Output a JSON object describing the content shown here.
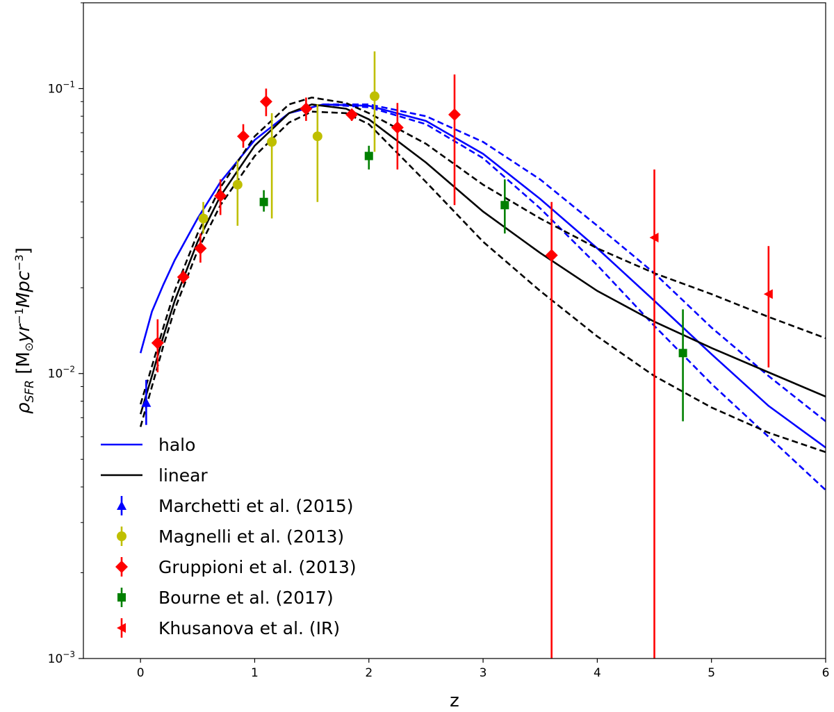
{
  "chart_data": {
    "type": "scatter",
    "title": "",
    "xlabel": "z",
    "ylabel": "ρSFR [M⊙yr⁻¹Mpc⁻³]",
    "xlim": [
      -0.5,
      6
    ],
    "ylim": [
      0.001,
      0.2
    ],
    "yscale": "log",
    "grid": false,
    "legend_position": "lower-left",
    "xticks": [
      0,
      1,
      2,
      3,
      4,
      5,
      6
    ],
    "xtick_labels": [
      "0",
      "1",
      "2",
      "3",
      "4",
      "5",
      "6"
    ],
    "yticks": [
      0.001,
      0.01,
      0.1
    ],
    "ytick_labels": [
      "10⁻³",
      "10⁻²",
      "10⁻¹"
    ],
    "lines": [
      {
        "name": "halo",
        "color": "#0000ff",
        "dash": "solid",
        "in_legend": true,
        "x": [
          0,
          0.1,
          0.2,
          0.3,
          0.5,
          0.7,
          1.0,
          1.3,
          1.6,
          2.0,
          2.5,
          3.0,
          3.5,
          4.0,
          4.5,
          5.0,
          5.5,
          6.0
        ],
        "y": [
          0.0118,
          0.0165,
          0.0205,
          0.025,
          0.035,
          0.047,
          0.066,
          0.082,
          0.088,
          0.087,
          0.077,
          0.059,
          0.041,
          0.0275,
          0.018,
          0.0117,
          0.0077,
          0.0055
        ]
      },
      {
        "name": "halo upper",
        "color": "#0000ff",
        "dash": "dashed",
        "in_legend": false,
        "x": [
          1.6,
          2.0,
          2.5,
          3.0,
          3.5,
          4.0,
          4.5,
          5.0,
          5.5,
          6.0
        ],
        "y": [
          0.088,
          0.088,
          0.08,
          0.065,
          0.048,
          0.033,
          0.0225,
          0.0145,
          0.0098,
          0.0068
        ]
      },
      {
        "name": "halo lower",
        "color": "#0000ff",
        "dash": "dashed",
        "in_legend": false,
        "x": [
          1.6,
          2.0,
          2.5,
          3.0,
          3.5,
          4.0,
          4.5,
          5.0,
          5.5,
          6.0
        ],
        "y": [
          0.088,
          0.086,
          0.075,
          0.057,
          0.038,
          0.024,
          0.0147,
          0.0092,
          0.006,
          0.0039
        ]
      },
      {
        "name": "linear",
        "color": "#000000",
        "dash": "solid",
        "in_legend": true,
        "x": [
          0,
          0.1,
          0.2,
          0.3,
          0.5,
          0.7,
          1.0,
          1.3,
          1.5,
          1.8,
          2.0,
          2.5,
          3.0,
          3.5,
          4.0,
          4.5,
          5.0,
          5.5,
          6.0
        ],
        "y": [
          0.0072,
          0.0098,
          0.0135,
          0.018,
          0.029,
          0.042,
          0.063,
          0.082,
          0.088,
          0.085,
          0.078,
          0.055,
          0.037,
          0.0265,
          0.0195,
          0.0152,
          0.0123,
          0.0101,
          0.0083
        ]
      },
      {
        "name": "linear upper",
        "color": "#000000",
        "dash": "dashed",
        "in_legend": false,
        "x": [
          0,
          0.1,
          0.2,
          0.3,
          0.5,
          0.7,
          1.0,
          1.3,
          1.5,
          1.8,
          2.0,
          2.5,
          3.0,
          3.5,
          4.0,
          4.5,
          5.0,
          5.5,
          6.0
        ],
        "y": [
          0.0078,
          0.0106,
          0.0145,
          0.0195,
          0.031,
          0.045,
          0.068,
          0.088,
          0.093,
          0.089,
          0.082,
          0.064,
          0.046,
          0.035,
          0.0275,
          0.0225,
          0.019,
          0.0158,
          0.0133
        ]
      },
      {
        "name": "linear lower",
        "color": "#000000",
        "dash": "dashed",
        "in_legend": false,
        "x": [
          0,
          0.1,
          0.2,
          0.3,
          0.5,
          0.7,
          1.0,
          1.3,
          1.5,
          1.8,
          2.0,
          2.5,
          3.0,
          3.5,
          4.0,
          4.5,
          5.0,
          5.5,
          6.0
        ],
        "y": [
          0.0065,
          0.009,
          0.0125,
          0.0168,
          0.027,
          0.039,
          0.058,
          0.076,
          0.083,
          0.082,
          0.075,
          0.047,
          0.029,
          0.0195,
          0.0135,
          0.0098,
          0.0076,
          0.0062,
          0.0053
        ]
      }
    ],
    "series": [
      {
        "name": "Marchetti et al. (2015)",
        "color": "#0000ff",
        "marker": "triangle-up",
        "points": [
          {
            "x": 0.05,
            "y": 0.0079,
            "ylo": 0.0066,
            "yhi": 0.0095
          }
        ]
      },
      {
        "name": "Magnelli et al. (2013)",
        "color": "#bfbf00",
        "marker": "circle",
        "points": [
          {
            "x": 0.55,
            "y": 0.035,
            "ylo": 0.031,
            "yhi": 0.04
          },
          {
            "x": 0.85,
            "y": 0.046,
            "ylo": 0.033,
            "yhi": 0.056
          },
          {
            "x": 1.15,
            "y": 0.065,
            "ylo": 0.035,
            "yhi": 0.082
          },
          {
            "x": 1.55,
            "y": 0.068,
            "ylo": 0.04,
            "yhi": 0.088
          },
          {
            "x": 2.05,
            "y": 0.094,
            "ylo": 0.06,
            "yhi": 0.135
          }
        ]
      },
      {
        "name": "Gruppioni et al. (2013)",
        "color": "#ff0000",
        "marker": "diamond",
        "points": [
          {
            "x": 0.15,
            "y": 0.0128,
            "ylo": 0.0101,
            "yhi": 0.0155
          },
          {
            "x": 0.375,
            "y": 0.0218,
            "ylo": 0.0207,
            "yhi": 0.023
          },
          {
            "x": 0.525,
            "y": 0.0275,
            "ylo": 0.0245,
            "yhi": 0.031
          },
          {
            "x": 0.7,
            "y": 0.042,
            "ylo": 0.036,
            "yhi": 0.048
          },
          {
            "x": 0.9,
            "y": 0.068,
            "ylo": 0.062,
            "yhi": 0.075
          },
          {
            "x": 1.1,
            "y": 0.09,
            "ylo": 0.08,
            "yhi": 0.1
          },
          {
            "x": 1.45,
            "y": 0.085,
            "ylo": 0.077,
            "yhi": 0.093
          },
          {
            "x": 1.85,
            "y": 0.081,
            "ylo": 0.077,
            "yhi": 0.085
          },
          {
            "x": 2.25,
            "y": 0.073,
            "ylo": 0.052,
            "yhi": 0.089
          },
          {
            "x": 2.75,
            "y": 0.081,
            "ylo": 0.039,
            "yhi": 0.112
          },
          {
            "x": 3.6,
            "y": 0.026,
            "ylo": 0.001,
            "yhi": 0.04
          }
        ]
      },
      {
        "name": "Bourne et al. (2017)",
        "color": "#008000",
        "marker": "square",
        "points": [
          {
            "x": 1.08,
            "y": 0.04,
            "ylo": 0.037,
            "yhi": 0.044
          },
          {
            "x": 2.0,
            "y": 0.058,
            "ylo": 0.052,
            "yhi": 0.063
          },
          {
            "x": 3.19,
            "y": 0.039,
            "ylo": 0.031,
            "yhi": 0.048
          },
          {
            "x": 4.75,
            "y": 0.0118,
            "ylo": 0.0068,
            "yhi": 0.0168
          }
        ]
      },
      {
        "name": "Khusanova et al. (IR)",
        "color": "#ff0000",
        "marker": "triangle-left",
        "points": [
          {
            "x": 4.5,
            "y": 0.03,
            "ylo": 0.001,
            "yhi": 0.052
          },
          {
            "x": 5.5,
            "y": 0.019,
            "ylo": 0.0105,
            "yhi": 0.028
          }
        ]
      }
    ]
  }
}
